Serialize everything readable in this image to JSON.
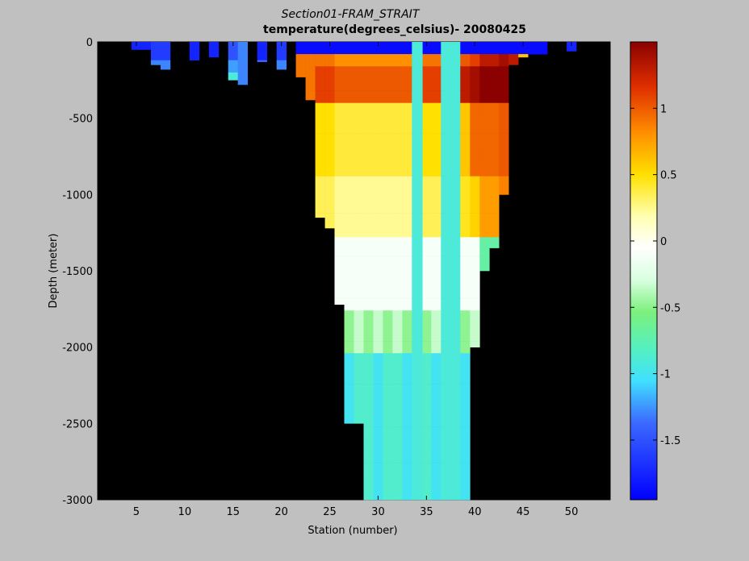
{
  "chart_data": {
    "type": "heatmap",
    "title": "Section01-FRAM_STRAIT",
    "subtitle": "temperature(degrees_celsius)- 20080425",
    "xlabel": "Station (number)",
    "ylabel": "Depth (meter)",
    "xlim": [
      1,
      54
    ],
    "ylim": [
      0,
      -3000
    ],
    "xticks": [
      5,
      10,
      15,
      20,
      25,
      30,
      35,
      40,
      45,
      50
    ],
    "yticks": [
      0,
      -500,
      -1000,
      -1500,
      -2000,
      -2500,
      -3000
    ],
    "colorbar": {
      "range": [
        -1.95,
        1.5
      ],
      "ticks": [
        1,
        0.5,
        0,
        -0.5,
        -1,
        -1.5
      ],
      "colormap": "jet-like with white center"
    },
    "background_color": "#000000",
    "station_profiles": [
      {
        "station": 5,
        "depth_max": 50,
        "temp": -1.8
      },
      {
        "station": 6,
        "depth_max": 50,
        "temp": -1.8
      },
      {
        "station": 7,
        "depth_max": 150,
        "temp": -1.7
      },
      {
        "station": 8,
        "depth_max": 180,
        "temp": -1.7
      },
      {
        "station": 11,
        "depth_max": 120,
        "temp": -1.8
      },
      {
        "station": 13,
        "depth_max": 100,
        "temp": -1.8
      },
      {
        "station": 15,
        "depth_max": 250,
        "temp": -1.6
      },
      {
        "station": 16,
        "depth_max": 280,
        "temp": -1.4
      },
      {
        "station": 18,
        "depth_max": 130,
        "temp": -1.8
      },
      {
        "station": 20,
        "depth_max": 180,
        "temp": -1.7
      },
      {
        "station": 22,
        "depth_max": 230,
        "temp": 0.2
      },
      {
        "station": 23,
        "depth_max": 380,
        "temp": 0.8
      },
      {
        "station": 24,
        "depth_max": 1150,
        "temp": 0.4
      },
      {
        "station": 25,
        "depth_max": 1220,
        "temp": 0.4
      },
      {
        "station": 26,
        "depth_max": 1720,
        "temp": 0.3
      },
      {
        "station": 27,
        "depth_max": 2500,
        "temp": 0.3
      },
      {
        "station": 28,
        "depth_max": 2500,
        "temp": 0.3
      },
      {
        "station": 29,
        "depth_max": 3000,
        "temp": 0.3
      },
      {
        "station": 30,
        "depth_max": 3000,
        "temp": 0.3
      },
      {
        "station": 31,
        "depth_max": 3000,
        "temp": 0.3
      },
      {
        "station": 32,
        "depth_max": 3000,
        "temp": 0.3
      },
      {
        "station": 33,
        "depth_max": 3000,
        "temp": 0.3
      },
      {
        "station": 34,
        "depth_max": 3000,
        "temp": -0.9
      },
      {
        "station": 35,
        "depth_max": 3000,
        "temp": 0.4
      },
      {
        "station": 36,
        "depth_max": 3000,
        "temp": 0.4
      },
      {
        "station": 37,
        "depth_max": 3000,
        "temp": -0.9
      },
      {
        "station": 38,
        "depth_max": 3000,
        "temp": -0.9
      },
      {
        "station": 39,
        "depth_max": 3000,
        "temp": 0.5
      },
      {
        "station": 40,
        "depth_max": 2000,
        "temp": 0.6
      },
      {
        "station": 41,
        "depth_max": 1500,
        "temp": 0.8
      },
      {
        "station": 42,
        "depth_max": 1350,
        "temp": 0.8
      },
      {
        "station": 43,
        "depth_max": 1000,
        "temp": 0.9
      },
      {
        "station": 44,
        "depth_max": 150,
        "temp": 0.8
      },
      {
        "station": 45,
        "depth_max": 100,
        "temp": 0.1
      },
      {
        "station": 46,
        "depth_max": 80,
        "temp": -0.2
      },
      {
        "station": 47,
        "depth_max": 80,
        "temp": -0.4
      },
      {
        "station": 50,
        "depth_max": 60,
        "temp": -1.8
      }
    ],
    "vertical_features": [
      {
        "station": 34,
        "temp": -0.9,
        "depth_max": 3000
      },
      {
        "station": 37.5,
        "temp": -0.9,
        "depth_max": 3000
      }
    ],
    "surface_layer": {
      "depth_range": [
        0,
        80
      ],
      "temp": -1.9
    },
    "atlantic_water_core": {
      "depth_range": [
        80,
        400
      ],
      "temp_max": 1.4
    }
  }
}
